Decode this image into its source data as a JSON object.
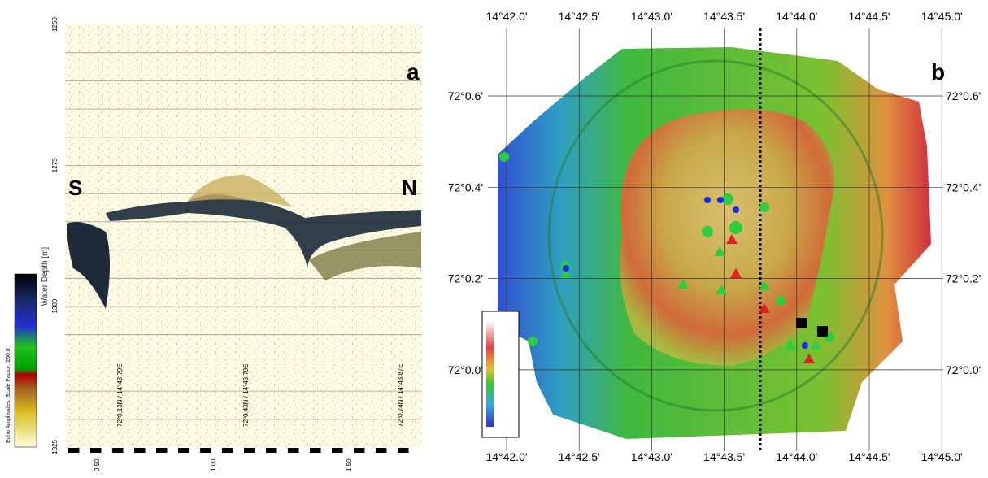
{
  "panel_a": {
    "label": "a",
    "left_label": "S",
    "right_label": "N",
    "axis_title": "Water Depth [m]",
    "depth_ticks": [
      "1250",
      "1275",
      "1300",
      "1325"
    ],
    "colorbar_label": "Echo Amplitudes: Scale Factor: 250.0",
    "positions": [
      "72°0.13N / 14°43.79E",
      "72°0.43N / 14°43.79E",
      "72°0.74N / 14°43.87E"
    ],
    "distance_ticks": [
      "0.50",
      "1.00",
      "1.50"
    ]
  },
  "panel_b": {
    "label": "b",
    "lon_ticks": [
      "14°42.0'",
      "14°42.5'",
      "14°43.0'",
      "14°43.5'",
      "14°44.0'",
      "14°44.5'",
      "14°45.0'"
    ],
    "lat_ticks": [
      "72°0.6'",
      "72°0.4'",
      "72°0.2'",
      "72°0.0'"
    ]
  }
}
